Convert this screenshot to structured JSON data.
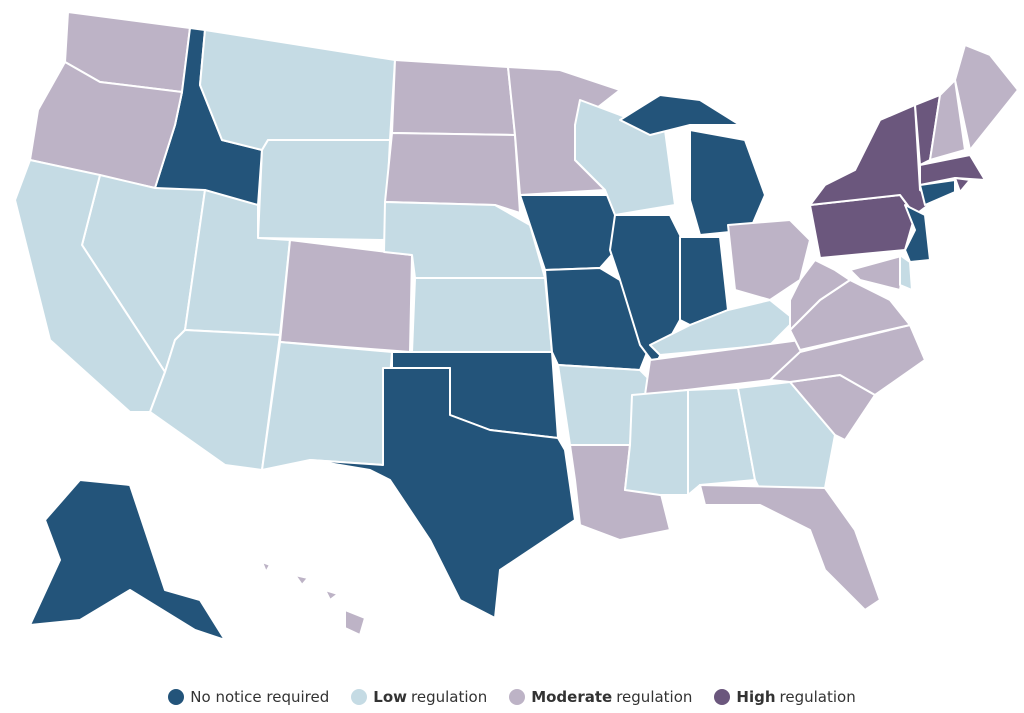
{
  "legend": [
    {
      "color": "#23547a",
      "label": "No notice required"
    },
    {
      "color": "#c5dbe4",
      "bold": "Low",
      "label": "regulation"
    },
    {
      "color": "#bdb3c6",
      "bold": "Moderate",
      "label": "regulation"
    },
    {
      "color": "#6b577d",
      "bold": "High",
      "label": "regulation"
    }
  ]
}
